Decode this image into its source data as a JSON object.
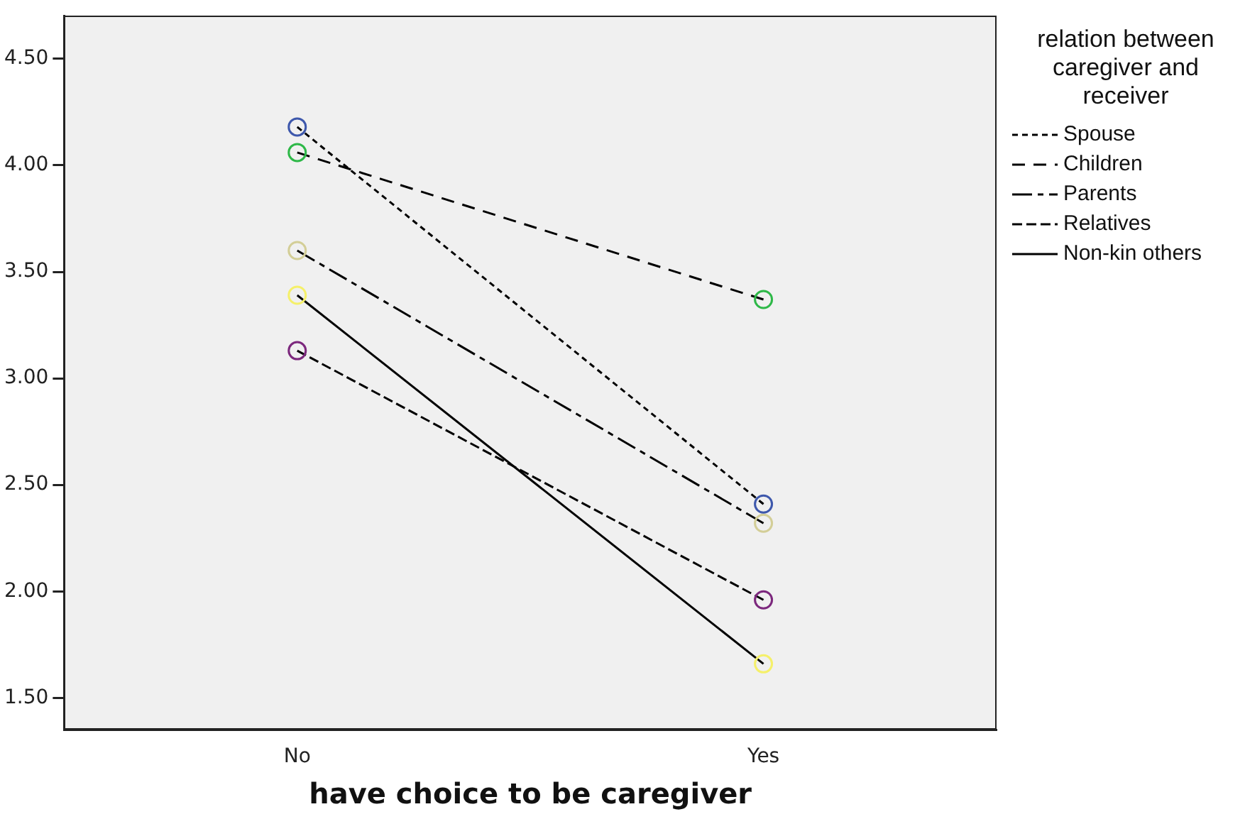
{
  "chart_data": {
    "type": "line",
    "xlabel": "have choice to be caregiver",
    "legend_title": "relation between caregiver and receiver",
    "categories": [
      "No",
      "Yes"
    ],
    "series": [
      {
        "name": "Spouse",
        "color": "#000000",
        "colors": [
          "#3e58ac",
          "#3e58ac"
        ],
        "line_style": "dashed",
        "values": [
          4.18,
          2.41
        ]
      },
      {
        "name": "Children",
        "color": "#000000",
        "colors": [
          "#2eb848",
          "#2eb848"
        ],
        "line_style": "dashed",
        "values": [
          4.06,
          3.37
        ]
      },
      {
        "name": "Parents",
        "color": "#000000",
        "colors": [
          "#d3ce97",
          "#d3ce97"
        ],
        "line_style": "dashed",
        "values": [
          3.6,
          2.32
        ]
      },
      {
        "name": "Relatives",
        "color": "#000000",
        "colors": [
          "#7c287d",
          "#7c287d"
        ],
        "line_style": "dashed",
        "values": [
          3.13,
          1.96
        ]
      },
      {
        "name": "Non-kin others",
        "color": "#000000",
        "colors": [
          "#f5f06a",
          "#f5f06a"
        ],
        "line_style": "solid",
        "values": [
          3.39,
          1.66
        ]
      }
    ],
    "ylim": [
      1.35,
      4.7
    ],
    "yticks": [
      {
        "value": 1.5,
        "label": "1.50"
      },
      {
        "value": 2,
        "label": "2.00"
      },
      {
        "value": 2.5,
        "label": "2.50"
      },
      {
        "value": 3,
        "label": "3.00"
      },
      {
        "value": 3.5,
        "label": "3.50"
      },
      {
        "value": 4,
        "label": "4.00"
      },
      {
        "value": 4.5,
        "label": "4.50"
      }
    ],
    "grid": false,
    "legend": "right",
    "marker": "circle"
  }
}
